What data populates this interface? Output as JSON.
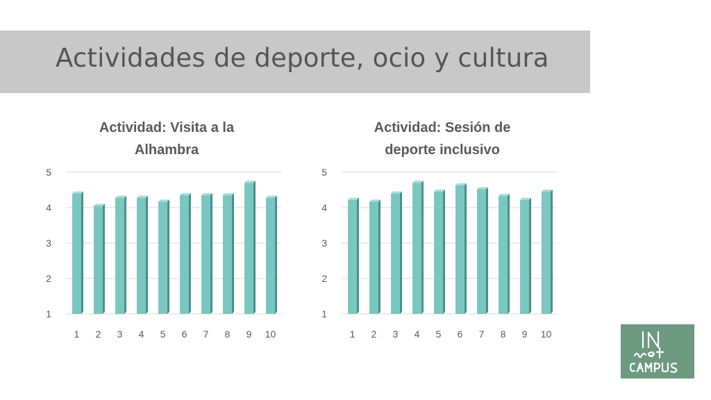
{
  "slide": {
    "title": "Actividades de deporte, ocio y cultura"
  },
  "logo": {
    "text_line1": "IN",
    "text_line2": "net",
    "text_line3": "CAMPUS",
    "bg_color": "#6d9a80",
    "fg_color": "#ffffff"
  },
  "colors": {
    "bar_front": "#7ac7c1",
    "bar_side": "#4a8f8a",
    "bar_top": "#a8dcd7",
    "grid": "#d9d9d9",
    "tick_text": "#595959"
  },
  "chart_data": [
    {
      "type": "bar",
      "title": "Actividad: Visita a la Alhambra",
      "title_lines": [
        "Actividad: Visita a la",
        "Alhambra"
      ],
      "categories": [
        "1",
        "2",
        "3",
        "4",
        "5",
        "6",
        "7",
        "8",
        "9",
        "10"
      ],
      "values": [
        4.4,
        4.05,
        4.28,
        4.28,
        4.17,
        4.35,
        4.35,
        4.35,
        4.7,
        4.28
      ],
      "ylim": [
        1,
        5
      ],
      "yticks": [
        1,
        2,
        3,
        4,
        5
      ],
      "grid": true,
      "xlabel": "",
      "ylabel": ""
    },
    {
      "type": "bar",
      "title": "Actividad: Sesión de deporte inclusivo",
      "title_lines": [
        "Actividad: Sesión de",
        "deporte inclusivo"
      ],
      "categories": [
        "1",
        "2",
        "3",
        "4",
        "5",
        "6",
        "7",
        "8",
        "9",
        "10"
      ],
      "values": [
        4.22,
        4.17,
        4.4,
        4.7,
        4.45,
        4.63,
        4.52,
        4.33,
        4.22,
        4.45
      ],
      "ylim": [
        1,
        5
      ],
      "yticks": [
        1,
        2,
        3,
        4,
        5
      ],
      "grid": true,
      "xlabel": "",
      "ylabel": ""
    }
  ]
}
